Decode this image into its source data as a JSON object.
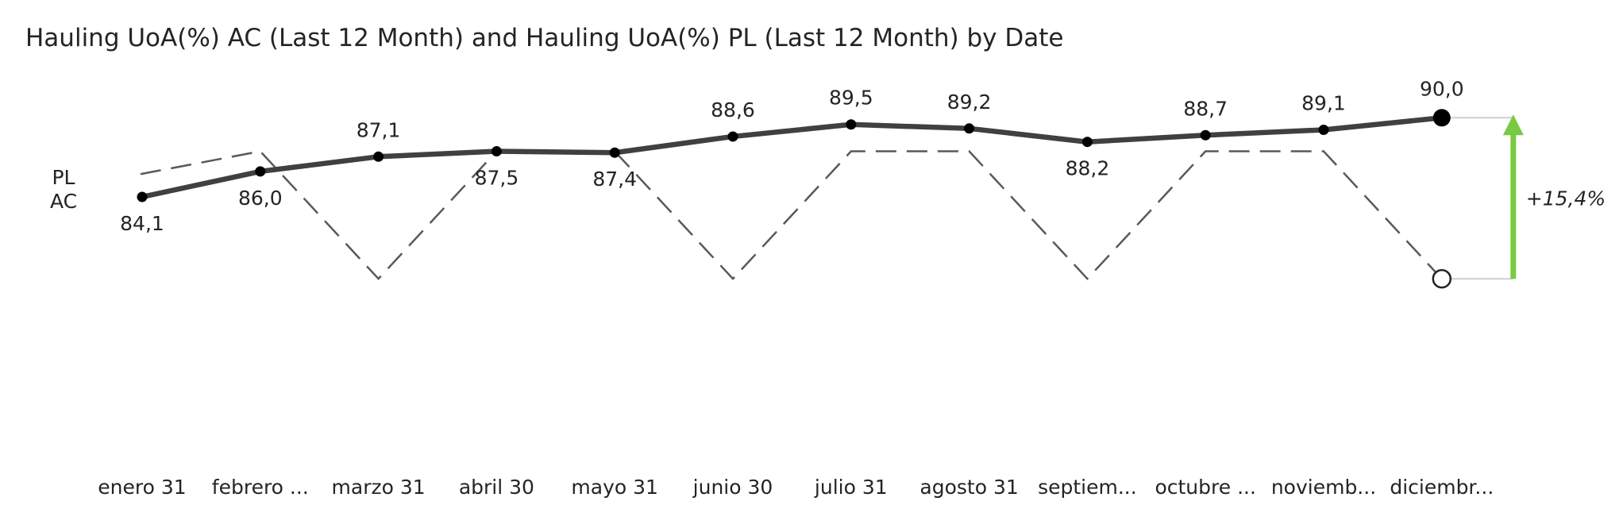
{
  "chart_data": {
    "type": "line",
    "title": "Hauling UoA(%) AC (Last 12 Month) and Hauling UoA(%) PL (Last 12 Month) by Date",
    "categories": [
      "enero 31",
      "febrero ...",
      "marzo 31",
      "abril 30",
      "mayo 31",
      "junio 30",
      "julio 31",
      "agosto 31",
      "septiem...",
      "octubre ...",
      "noviemb...",
      "diciembr..."
    ],
    "series": [
      {
        "name": "AC",
        "values": [
          84.1,
          86.0,
          87.1,
          87.5,
          87.4,
          88.6,
          89.5,
          89.2,
          88.2,
          88.7,
          89.1,
          90.0
        ],
        "labels": [
          "84,1",
          "86,0",
          "87,1",
          "87,5",
          "87,4",
          "88,6",
          "89,5",
          "89,2",
          "88,2",
          "88,7",
          "89,1",
          "90,0"
        ],
        "style": "solid",
        "color": "#404040"
      },
      {
        "name": "PL",
        "values": [
          85.8,
          87.5,
          78.0,
          87.5,
          87.5,
          78.0,
          87.5,
          87.5,
          78.0,
          87.5,
          87.5,
          78.0
        ],
        "style": "dashed",
        "color": "#595959"
      }
    ],
    "variance": {
      "label": "+15,4%",
      "color": "#7ac943"
    },
    "ylim": [
      70,
      95
    ],
    "grid": false,
    "legend": "left"
  }
}
